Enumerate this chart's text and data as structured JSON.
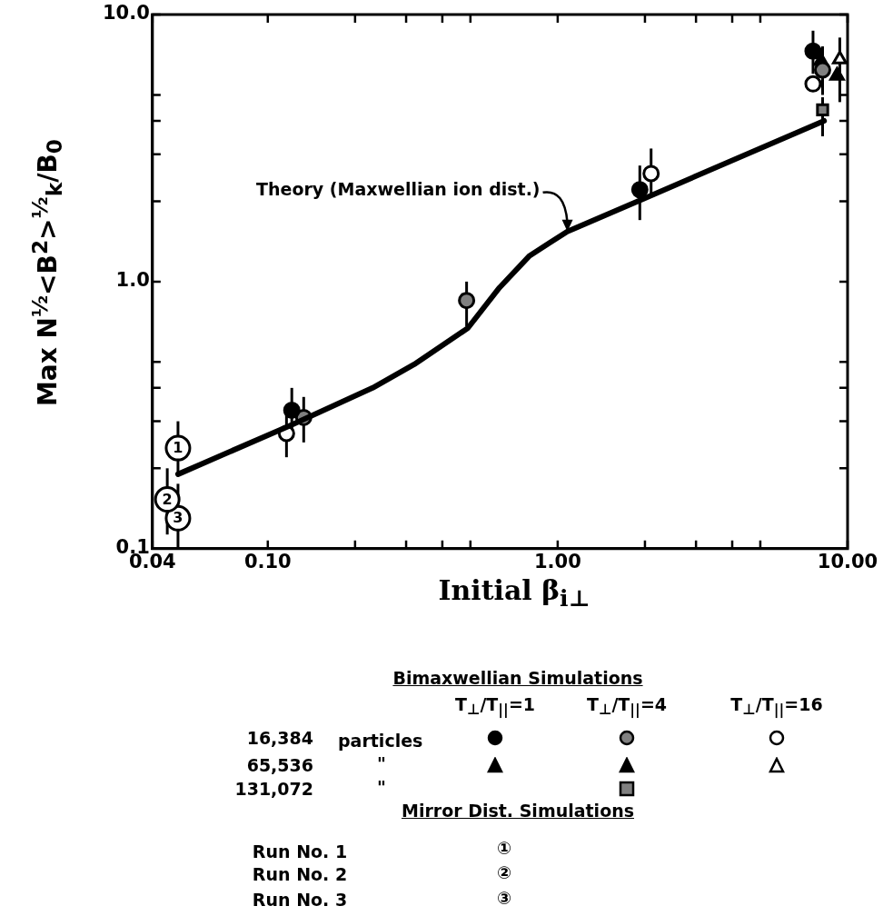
{
  "chart_data": {
    "type": "scatter",
    "xlabel": "Initial β$_{i⊥}$",
    "ylabel": "Max N$^{½}$<B$^{2}$>$^{½}$$_{k}$/B$_{0}$",
    "log": "xy",
    "grid": false,
    "legend": false,
    "xlim": [
      0.04,
      10
    ],
    "ylim": [
      0.1,
      10
    ],
    "xticks": [
      {
        "value": 0.04,
        "label": "0.04"
      },
      {
        "value": 0.1,
        "label": "0.10"
      },
      {
        "value": 0.2,
        "label": null
      },
      {
        "value": 0.3,
        "label": null
      },
      {
        "value": 0.4,
        "label": null
      },
      {
        "value": 0.5,
        "label": null
      },
      {
        "value": 1,
        "label": "1.00"
      },
      {
        "value": 2,
        "label": null
      },
      {
        "value": 3,
        "label": null
      },
      {
        "value": 4,
        "label": null
      },
      {
        "value": 5,
        "label": null
      },
      {
        "value": 10,
        "label": "10.00"
      }
    ],
    "yticks": [
      0.1,
      {
        "value": 0.2,
        "label": null
      },
      {
        "value": 0.3,
        "label": null
      },
      {
        "value": 0.4,
        "label": null
      },
      {
        "value": 0.5,
        "label": null
      },
      {
        "value": 1,
        "label": "1.0"
      },
      {
        "value": 2,
        "label": null
      },
      {
        "value": 3,
        "label": null
      },
      {
        "value": 4,
        "label": null
      },
      {
        "value": 5,
        "label": null
      },
      {
        "value": 10,
        "label": "10.0"
      }
    ],
    "series": [
      {
        "type": "line",
        "color": "#000000",
        "marker": "none",
        "line_style": "solid",
        "x": [
          0.049,
          0.12,
          0.23,
          0.32,
          0.49,
          0.63,
          0.8,
          0.94,
          1.08,
          1.97,
          8.3
        ],
        "values": [
          0.19,
          0.29,
          0.4,
          0.49,
          0.67,
          0.95,
          1.25,
          1.4,
          1.54,
          2.04,
          4.0
        ]
      },
      {
        "color": "#000000",
        "marker": "circle",
        "x": [
          0.121,
          1.92,
          7.6
        ],
        "values": [
          0.33,
          2.21,
          7.3
        ],
        "errors": [
          [
            0.27,
            0.4
          ],
          [
            1.7,
            2.72
          ],
          [
            6.0,
            8.7
          ]
        ]
      },
      {
        "color": "#808080",
        "marker": "circle",
        "x": [
          0.133,
          0.485,
          8.2
        ],
        "values": [
          0.31,
          0.85,
          6.2
        ],
        "errors": [
          [
            0.25,
            0.37
          ],
          [
            0.68,
            1.0
          ],
          [
            5.0,
            7.6
          ]
        ]
      },
      {
        "color": "#ffffff",
        "marker": "circle",
        "x": [
          0.116,
          2.1,
          7.6
        ],
        "values": [
          0.27,
          2.54,
          5.5
        ],
        "errors": [
          [
            0.22,
            0.33
          ],
          [
            2.12,
            3.15
          ],
          null
        ]
      },
      {
        "color": "#000000",
        "marker": "triangle",
        "x": [
          8.1
        ],
        "values": [
          6.7
        ]
      },
      {
        "color": "#000000",
        "marker": "triangle",
        "x": [
          9.2
        ],
        "values": [
          5.9
        ]
      },
      {
        "color": "#ffffff",
        "marker": "triangle",
        "x": [
          9.4
        ],
        "values": [
          6.8
        ],
        "errors": [
          [
            4.7,
            8.2
          ]
        ]
      },
      {
        "color": "#808080",
        "marker": "square",
        "x": [
          8.2
        ],
        "values": [
          4.4
        ],
        "errors": [
          [
            3.5,
            4.9
          ]
        ]
      },
      {
        "color": "#ffffff",
        "marker": "circle",
        "x": [
          0.049
        ],
        "values": [
          0.238
        ],
        "errors": [
          [
            0.19,
            0.3
          ]
        ]
      },
      {
        "color": "#ffffff",
        "marker": "circle",
        "x": [
          0.045
        ],
        "values": [
          0.153
        ],
        "errors": [
          [
            0.113,
            0.2
          ]
        ]
      },
      {
        "color": "#ffffff",
        "marker": "circle",
        "x": [
          0.049
        ],
        "values": [
          0.13
        ],
        "errors": [
          [
            0.1,
            0.175
          ]
        ]
      }
    ],
    "annotations": [
      {
        "text": "Theory (Maxwellian ion dist.)",
        "x": 1.08,
        "y": 1.54
      },
      "1",
      "2",
      "3",
      "Bimaxwellian Simulations",
      "T$_{⊥}$/T$_{||}$=1",
      "T$_{⊥}$/T$_{||}$=4",
      "T$_{⊥}$/T$_{||}$=16",
      "16,384",
      "particles",
      "65,536",
      "\"",
      "131,072",
      "\"",
      "Mirror Dist. Simulations",
      "Run No. 1",
      "①",
      "Run No. 2",
      "②",
      "Run No. 3",
      "③"
    ]
  }
}
